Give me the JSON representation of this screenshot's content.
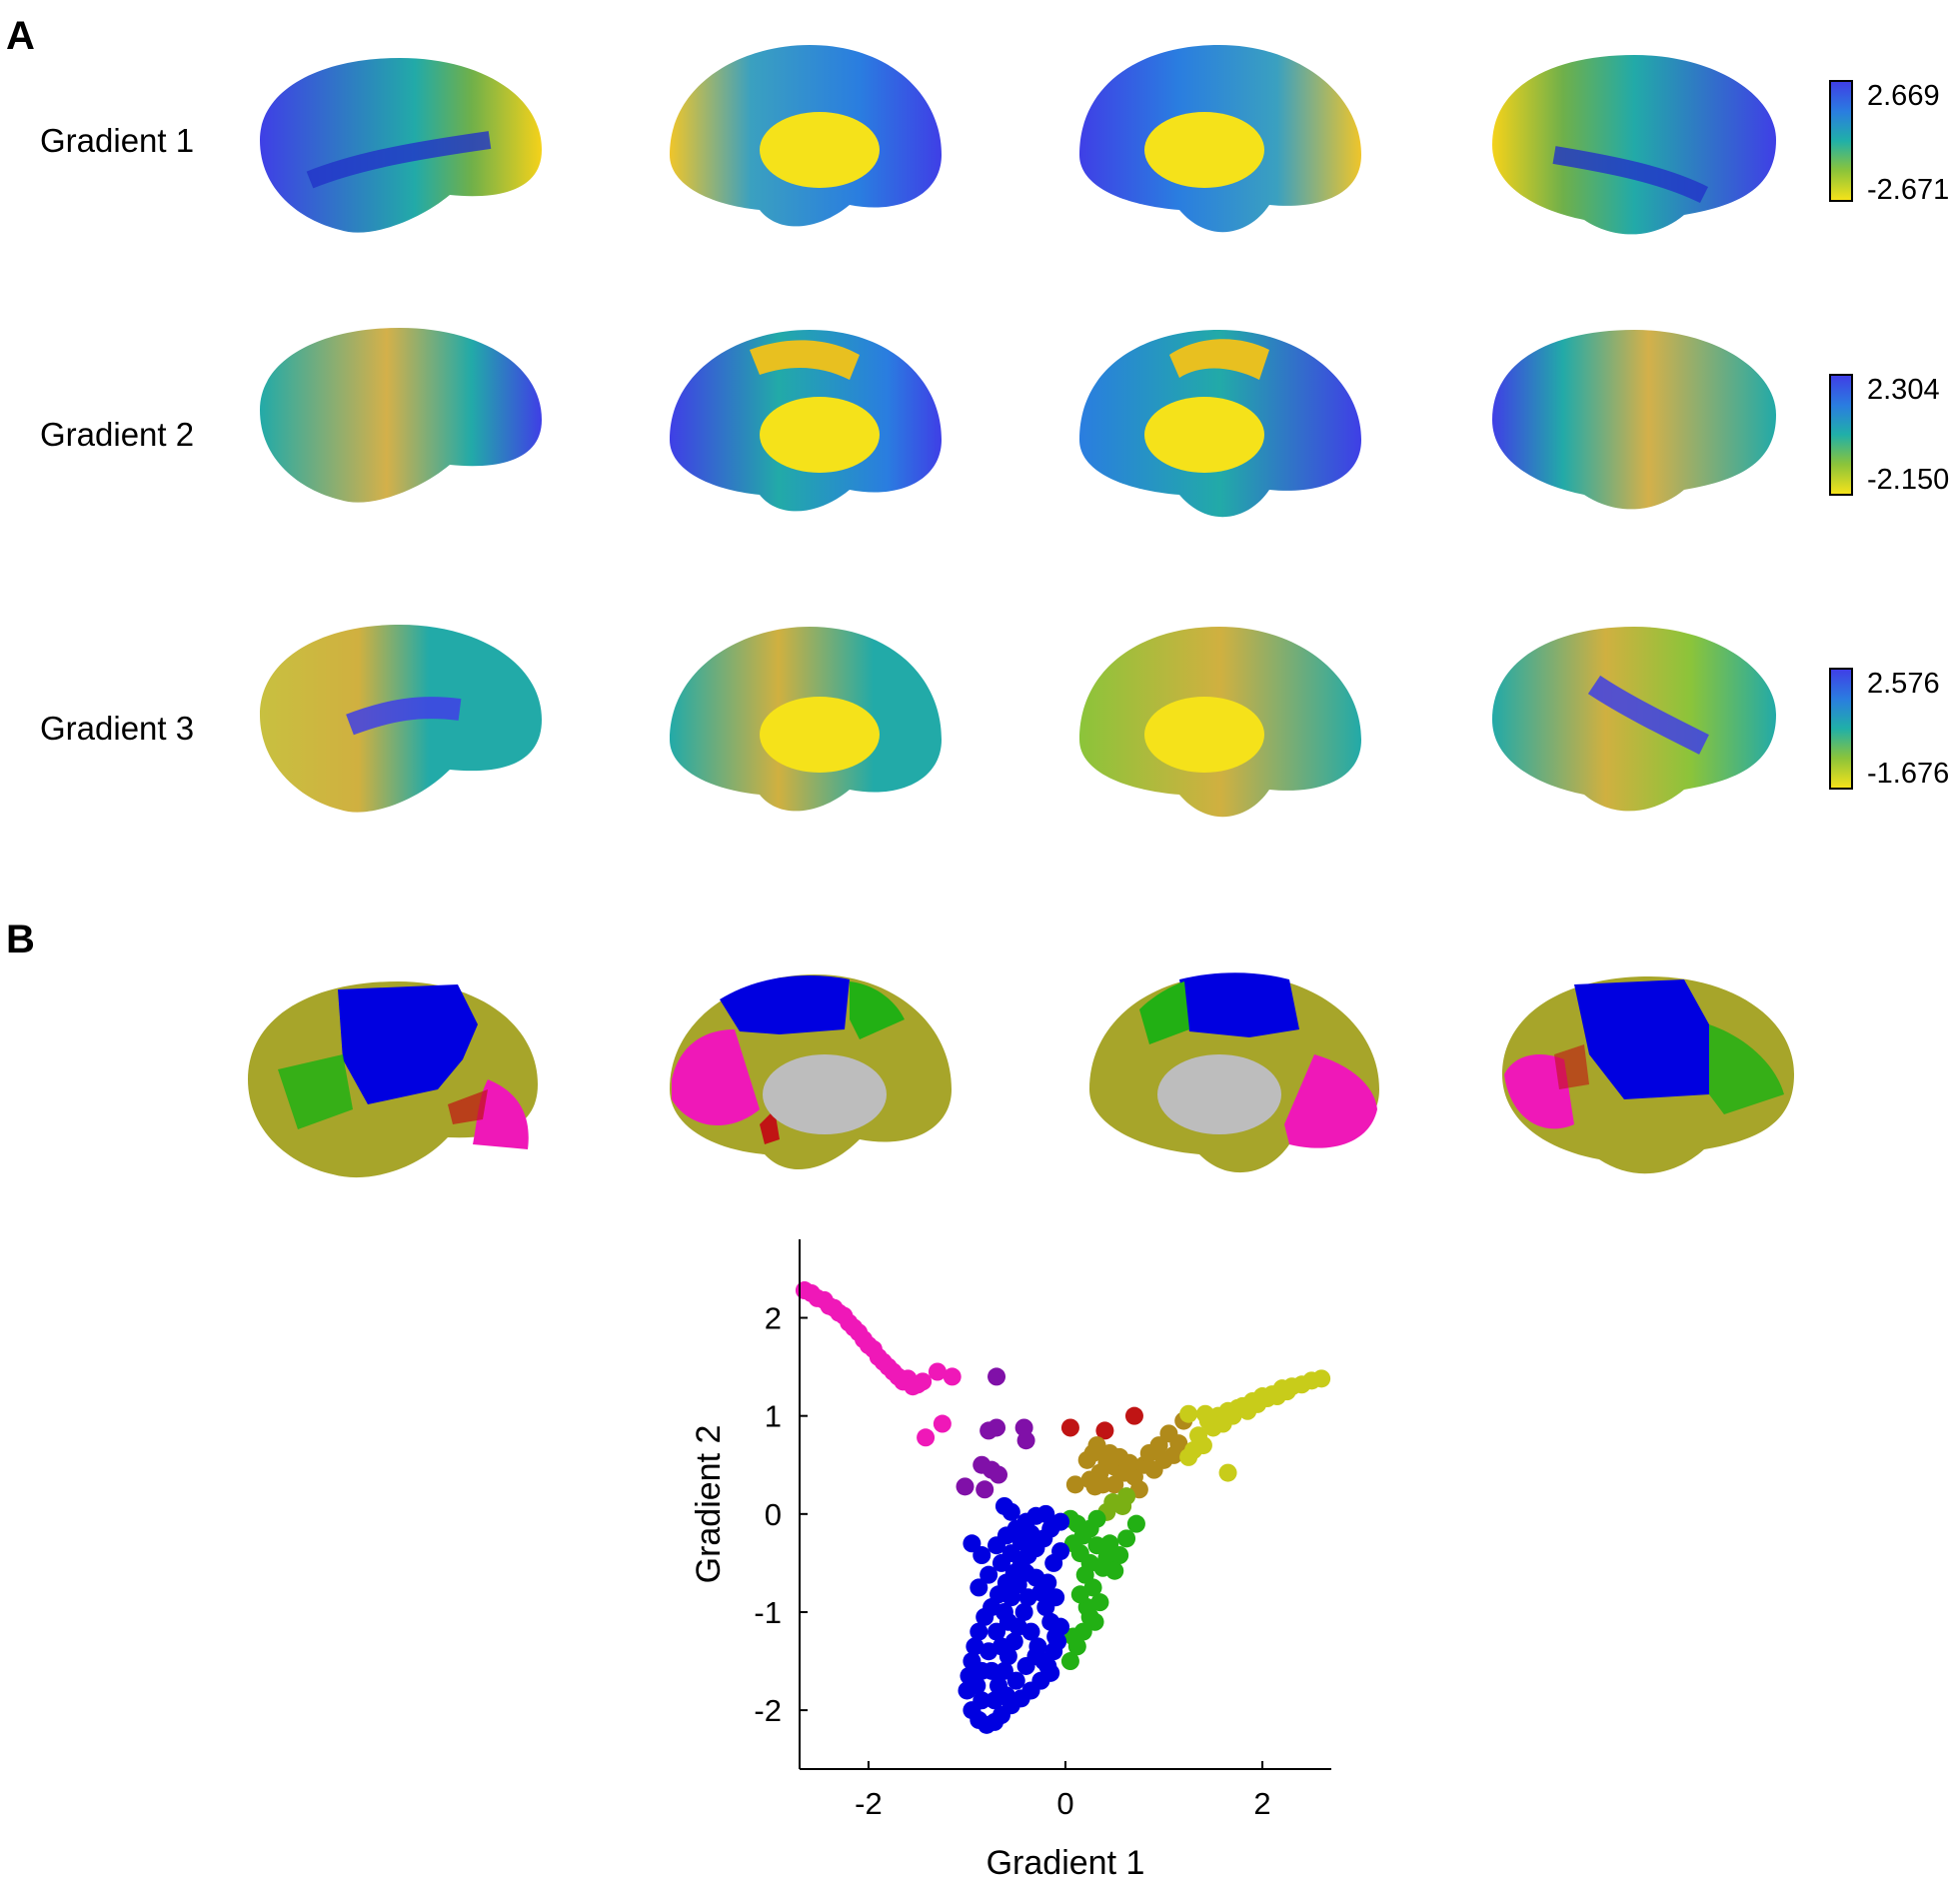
{
  "panels": {
    "a": "A",
    "b": "B"
  },
  "rows": [
    {
      "label": "Gradient 1",
      "max": "2.669",
      "min": "-2.671"
    },
    {
      "label": "Gradient 2",
      "max": "2.304",
      "min": "-2.150"
    },
    {
      "label": "Gradient 3",
      "max": "2.576",
      "min": "-1.676"
    }
  ],
  "views": [
    "lateral-left",
    "medial-left",
    "medial-right",
    "lateral-right"
  ],
  "colors": {
    "blue": "#0000e0",
    "green": "#22b014",
    "olive": "#a7a52a",
    "magenta": "#ef18b8",
    "red": "#c01414",
    "purple": "#8010a8",
    "yellow": "#f5e21a",
    "teal": "#22aaa8",
    "gray": "#bdbdbd"
  },
  "chart_data": {
    "type": "scatter",
    "title": "",
    "xlabel": "Gradient 1",
    "ylabel": "Gradient 2",
    "xlim": [
      -2.7,
      2.7
    ],
    "ylim": [
      -2.6,
      2.8
    ],
    "xticks": [
      -2,
      0,
      2
    ],
    "yticks": [
      -2,
      -1,
      0,
      1,
      2
    ],
    "color_note": "point color follows the 2-D gradient position (magenta/purple upper-left, blue lower-left, green lower-right, yellow upper-right, red top-center)",
    "points": [
      [
        -2.65,
        2.28
      ],
      [
        -2.58,
        2.25
      ],
      [
        -2.52,
        2.2
      ],
      [
        -2.45,
        2.18
      ],
      [
        -2.4,
        2.12
      ],
      [
        -2.35,
        2.1
      ],
      [
        -2.3,
        2.05
      ],
      [
        -2.25,
        2.02
      ],
      [
        -2.2,
        1.95
      ],
      [
        -2.15,
        1.9
      ],
      [
        -2.1,
        1.85
      ],
      [
        -2.05,
        1.78
      ],
      [
        -2.0,
        1.72
      ],
      [
        -1.95,
        1.68
      ],
      [
        -1.9,
        1.6
      ],
      [
        -1.85,
        1.55
      ],
      [
        -1.8,
        1.5
      ],
      [
        -1.75,
        1.45
      ],
      [
        -1.7,
        1.4
      ],
      [
        -1.65,
        1.35
      ],
      [
        -1.6,
        1.38
      ],
      [
        -1.55,
        1.3
      ],
      [
        -1.5,
        1.32
      ],
      [
        -1.45,
        1.35
      ],
      [
        -1.3,
        1.45
      ],
      [
        -1.15,
        1.4
      ],
      [
        -1.42,
        0.78
      ],
      [
        -1.25,
        0.92
      ],
      [
        -0.7,
        1.4
      ],
      [
        -0.7,
        0.88
      ],
      [
        -0.78,
        0.85
      ],
      [
        -0.42,
        0.88
      ],
      [
        -0.4,
        0.75
      ],
      [
        -0.85,
        0.5
      ],
      [
        -0.75,
        0.45
      ],
      [
        -0.68,
        0.4
      ],
      [
        -1.02,
        0.28
      ],
      [
        -0.82,
        0.25
      ],
      [
        -0.62,
        0.08
      ],
      [
        -0.55,
        0.02
      ],
      [
        0.05,
        0.88
      ],
      [
        0.4,
        0.85
      ],
      [
        0.7,
        1.0
      ],
      [
        0.1,
        0.3
      ],
      [
        0.28,
        0.62
      ],
      [
        0.22,
        0.55
      ],
      [
        0.32,
        0.7
      ],
      [
        0.42,
        0.52
      ],
      [
        0.5,
        0.48
      ],
      [
        0.55,
        0.58
      ],
      [
        0.45,
        0.62
      ],
      [
        0.35,
        0.42
      ],
      [
        0.6,
        0.42
      ],
      [
        0.65,
        0.52
      ],
      [
        0.7,
        0.38
      ],
      [
        0.38,
        0.3
      ],
      [
        0.3,
        0.28
      ],
      [
        0.25,
        0.35
      ],
      [
        0.5,
        0.3
      ],
      [
        0.8,
        0.5
      ],
      [
        0.85,
        0.62
      ],
      [
        0.9,
        0.45
      ],
      [
        0.95,
        0.7
      ],
      [
        1.0,
        0.55
      ],
      [
        1.05,
        0.82
      ],
      [
        1.1,
        0.6
      ],
      [
        1.15,
        0.72
      ],
      [
        1.2,
        0.95
      ],
      [
        1.25,
        0.58
      ],
      [
        1.3,
        0.65
      ],
      [
        1.35,
        0.8
      ],
      [
        1.4,
        0.7
      ],
      [
        1.45,
        0.95
      ],
      [
        1.5,
        0.88
      ],
      [
        1.55,
        1.0
      ],
      [
        1.6,
        0.92
      ],
      [
        1.65,
        1.05
      ],
      [
        1.7,
        1.0
      ],
      [
        1.75,
        1.08
      ],
      [
        1.8,
        1.1
      ],
      [
        1.85,
        1.05
      ],
      [
        1.9,
        1.15
      ],
      [
        1.95,
        1.12
      ],
      [
        2.0,
        1.2
      ],
      [
        2.05,
        1.18
      ],
      [
        2.1,
        1.22
      ],
      [
        2.15,
        1.2
      ],
      [
        2.2,
        1.28
      ],
      [
        2.25,
        1.25
      ],
      [
        2.3,
        1.3
      ],
      [
        2.4,
        1.32
      ],
      [
        2.5,
        1.36
      ],
      [
        2.6,
        1.38
      ],
      [
        1.65,
        0.42
      ],
      [
        1.25,
        1.02
      ],
      [
        1.42,
        1.02
      ],
      [
        0.75,
        0.25
      ],
      [
        0.62,
        0.18
      ],
      [
        0.58,
        0.08
      ],
      [
        0.48,
        0.12
      ],
      [
        0.42,
        0.02
      ],
      [
        0.32,
        -0.05
      ],
      [
        0.25,
        -0.15
      ],
      [
        0.18,
        -0.22
      ],
      [
        0.12,
        -0.1
      ],
      [
        0.05,
        -0.05
      ],
      [
        0.08,
        -0.3
      ],
      [
        0.15,
        -0.4
      ],
      [
        0.25,
        -0.5
      ],
      [
        0.32,
        -0.32
      ],
      [
        0.38,
        -0.55
      ],
      [
        0.45,
        -0.3
      ],
      [
        0.28,
        -0.75
      ],
      [
        0.2,
        -0.62
      ],
      [
        0.35,
        -0.9
      ],
      [
        0.25,
        -1.05
      ],
      [
        0.18,
        -1.2
      ],
      [
        0.12,
        -1.35
      ],
      [
        0.05,
        -1.5
      ],
      [
        0.22,
        -0.95
      ],
      [
        0.15,
        -0.82
      ],
      [
        0.3,
        -1.1
      ],
      [
        0.08,
        -1.25
      ],
      [
        0.42,
        -0.45
      ],
      [
        0.55,
        -0.42
      ],
      [
        0.5,
        -0.58
      ],
      [
        0.62,
        -0.25
      ],
      [
        0.72,
        -0.1
      ],
      [
        -0.05,
        -0.08
      ],
      [
        -0.15,
        -0.15
      ],
      [
        -0.22,
        -0.25
      ],
      [
        -0.3,
        -0.35
      ],
      [
        -0.38,
        -0.42
      ],
      [
        -0.45,
        -0.52
      ],
      [
        -0.52,
        -0.6
      ],
      [
        -0.6,
        -0.7
      ],
      [
        -0.68,
        -0.82
      ],
      [
        -0.75,
        -0.95
      ],
      [
        -0.82,
        -1.05
      ],
      [
        -0.88,
        -1.2
      ],
      [
        -0.92,
        -1.35
      ],
      [
        -0.95,
        -1.5
      ],
      [
        -0.98,
        -1.65
      ],
      [
        -1.0,
        -1.8
      ],
      [
        -0.95,
        -2.0
      ],
      [
        -0.88,
        -2.1
      ],
      [
        -0.8,
        -2.15
      ],
      [
        -0.72,
        -2.12
      ],
      [
        -0.65,
        -2.05
      ],
      [
        -0.55,
        -1.95
      ],
      [
        -0.45,
        -1.88
      ],
      [
        -0.35,
        -1.8
      ],
      [
        -0.25,
        -1.7
      ],
      [
        -0.18,
        -1.55
      ],
      [
        -0.12,
        -1.4
      ],
      [
        -0.1,
        -1.25
      ],
      [
        -0.15,
        -1.1
      ],
      [
        -0.2,
        -0.95
      ],
      [
        -0.25,
        -0.8
      ],
      [
        -0.3,
        -0.65
      ],
      [
        -0.12,
        -0.5
      ],
      [
        -0.05,
        -0.38
      ],
      [
        -0.38,
        -0.85
      ],
      [
        -0.42,
        -1.0
      ],
      [
        -0.48,
        -1.15
      ],
      [
        -0.52,
        -1.3
      ],
      [
        -0.58,
        -1.45
      ],
      [
        -0.62,
        -1.6
      ],
      [
        -0.68,
        -1.75
      ],
      [
        -0.72,
        -1.9
      ],
      [
        -0.85,
        -1.6
      ],
      [
        -0.78,
        -1.4
      ],
      [
        -0.7,
        -1.2
      ],
      [
        -0.62,
        -1.0
      ],
      [
        -0.55,
        -0.85
      ],
      [
        -0.48,
        -0.72
      ],
      [
        -0.35,
        -1.2
      ],
      [
        -0.28,
        -1.35
      ],
      [
        -0.22,
        -1.5
      ],
      [
        -0.15,
        -1.62
      ],
      [
        -0.08,
        -1.3
      ],
      [
        -0.05,
        -1.15
      ],
      [
        -0.1,
        -0.85
      ],
      [
        -0.18,
        -0.7
      ],
      [
        -0.95,
        -0.3
      ],
      [
        -0.85,
        -0.42
      ],
      [
        -0.7,
        -0.32
      ],
      [
        -0.6,
        -0.22
      ],
      [
        -0.5,
        -0.15
      ],
      [
        -0.4,
        -0.08
      ],
      [
        -0.3,
        -0.02
      ],
      [
        -0.2,
        0.0
      ],
      [
        -0.88,
        -0.75
      ],
      [
        -0.78,
        -0.62
      ],
      [
        -0.65,
        -0.5
      ],
      [
        -0.55,
        -0.4
      ],
      [
        -0.45,
        -0.28
      ],
      [
        -0.35,
        -0.2
      ],
      [
        -0.6,
        -1.85
      ],
      [
        -0.5,
        -1.7
      ],
      [
        -0.4,
        -1.55
      ],
      [
        -0.3,
        -1.45
      ],
      [
        -0.85,
        -1.9
      ],
      [
        -0.9,
        -1.75
      ],
      [
        -0.75,
        -1.6
      ],
      [
        -0.65,
        -1.35
      ],
      [
        -0.58,
        -1.1
      ],
      [
        -0.4,
        -0.6
      ]
    ]
  }
}
